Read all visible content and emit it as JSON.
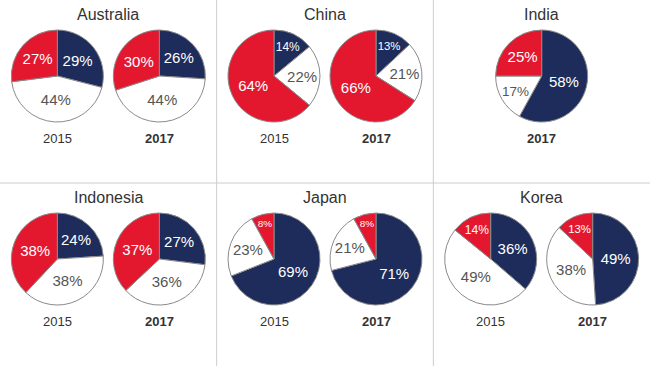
{
  "chart_data": [
    {
      "type": "pie",
      "title": "Australia",
      "colors": [
        "#1e2c5b",
        "#ffffff",
        "#e3182f"
      ],
      "data_labels": true,
      "series": [
        {
          "name": "2015",
          "values": [
            29,
            44,
            27
          ],
          "value_labels": [
            "29%",
            "44%",
            "27%"
          ]
        },
        {
          "name": "2017",
          "values": [
            26,
            44,
            30
          ],
          "value_labels": [
            "26%",
            "44%",
            "30%"
          ]
        }
      ]
    },
    {
      "type": "pie",
      "title": "China",
      "colors": [
        "#1e2c5b",
        "#ffffff",
        "#e3182f"
      ],
      "data_labels": true,
      "series": [
        {
          "name": "2015",
          "values": [
            14,
            22,
            64
          ],
          "value_labels": [
            "14%",
            "22%",
            "64%"
          ]
        },
        {
          "name": "2017",
          "values": [
            13,
            21,
            66
          ],
          "value_labels": [
            "13%",
            "21%",
            "66%"
          ]
        }
      ]
    },
    {
      "type": "pie",
      "title": "India",
      "colors": [
        "#1e2c5b",
        "#ffffff",
        "#e3182f"
      ],
      "data_labels": true,
      "series": [
        {
          "name": "2017",
          "values": [
            58,
            17,
            25
          ],
          "value_labels": [
            "58%",
            "17%",
            "25%"
          ]
        }
      ]
    },
    {
      "type": "pie",
      "title": "Indonesia",
      "colors": [
        "#1e2c5b",
        "#ffffff",
        "#e3182f"
      ],
      "data_labels": true,
      "series": [
        {
          "name": "2015",
          "values": [
            24,
            38,
            38
          ],
          "value_labels": [
            "24%",
            "38%",
            "38%"
          ]
        },
        {
          "name": "2017",
          "values": [
            27,
            36,
            37
          ],
          "value_labels": [
            "27%",
            "36%",
            "37%"
          ]
        }
      ]
    },
    {
      "type": "pie",
      "title": "Japan",
      "colors": [
        "#1e2c5b",
        "#ffffff",
        "#e3182f"
      ],
      "data_labels": true,
      "series": [
        {
          "name": "2015",
          "values": [
            69,
            23,
            8
          ],
          "value_labels": [
            "69%",
            "23%",
            "8%"
          ]
        },
        {
          "name": "2017",
          "values": [
            71,
            21,
            8
          ],
          "value_labels": [
            "71%",
            "21%",
            "8%"
          ]
        }
      ]
    },
    {
      "type": "pie",
      "title": "Korea",
      "colors": [
        "#1e2c5b",
        "#ffffff",
        "#e3182f"
      ],
      "data_labels": true,
      "series": [
        {
          "name": "2015",
          "values": [
            36,
            49,
            14
          ],
          "value_labels": [
            "36%",
            "49%",
            "14%"
          ]
        },
        {
          "name": "2017",
          "values": [
            49,
            38,
            13
          ],
          "value_labels": [
            "49%",
            "38%",
            "13%"
          ]
        }
      ]
    }
  ]
}
